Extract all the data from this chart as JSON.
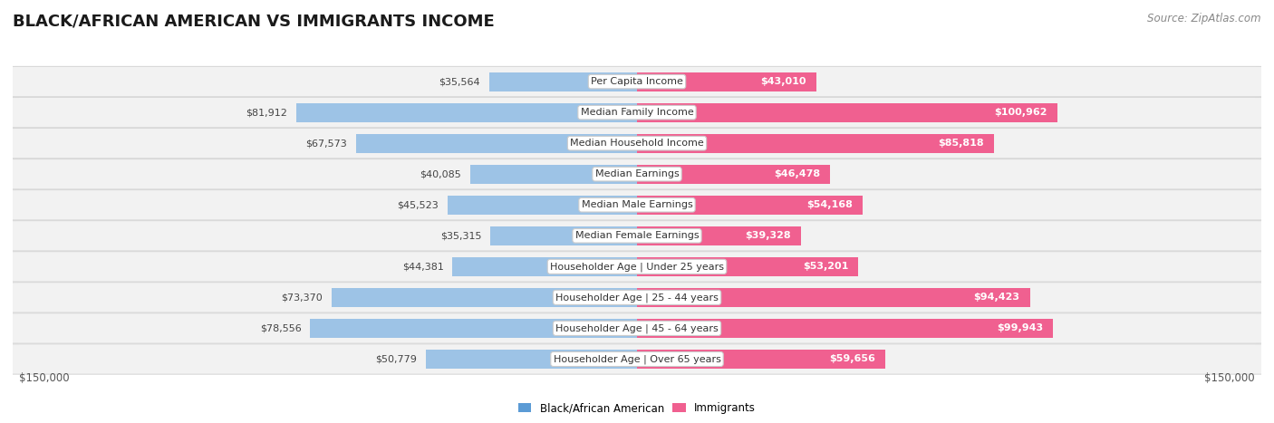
{
  "title": "BLACK/AFRICAN AMERICAN VS IMMIGRANTS INCOME",
  "source": "Source: ZipAtlas.com",
  "categories": [
    "Per Capita Income",
    "Median Family Income",
    "Median Household Income",
    "Median Earnings",
    "Median Male Earnings",
    "Median Female Earnings",
    "Householder Age | Under 25 years",
    "Householder Age | 25 - 44 years",
    "Householder Age | 45 - 64 years",
    "Householder Age | Over 65 years"
  ],
  "black_values": [
    35564,
    81912,
    67573,
    40085,
    45523,
    35315,
    44381,
    73370,
    78556,
    50779
  ],
  "immigrant_values": [
    43010,
    100962,
    85818,
    46478,
    54168,
    39328,
    53201,
    94423,
    99943,
    59656
  ],
  "black_labels": [
    "$35,564",
    "$81,912",
    "$67,573",
    "$40,085",
    "$45,523",
    "$35,315",
    "$44,381",
    "$73,370",
    "$78,556",
    "$50,779"
  ],
  "immigrant_labels": [
    "$43,010",
    "$100,962",
    "$85,818",
    "$46,478",
    "$54,168",
    "$39,328",
    "$53,201",
    "$94,423",
    "$99,943",
    "$59,656"
  ],
  "max_value": 150000,
  "black_color_strong": "#5b9bd5",
  "black_color_light": "#9dc3e6",
  "immigrant_color_strong": "#f06090",
  "immigrant_color_light": "#f4a0be",
  "row_bg_color": "#f2f2f2",
  "row_border_color": "#d8d8d8",
  "x_axis_label_left": "$150,000",
  "x_axis_label_right": "$150,000",
  "legend_labels": [
    "Black/African American",
    "Immigrants"
  ],
  "title_fontsize": 13,
  "source_fontsize": 8.5,
  "value_label_fontsize": 8,
  "category_fontsize": 8,
  "axis_fontsize": 8.5
}
